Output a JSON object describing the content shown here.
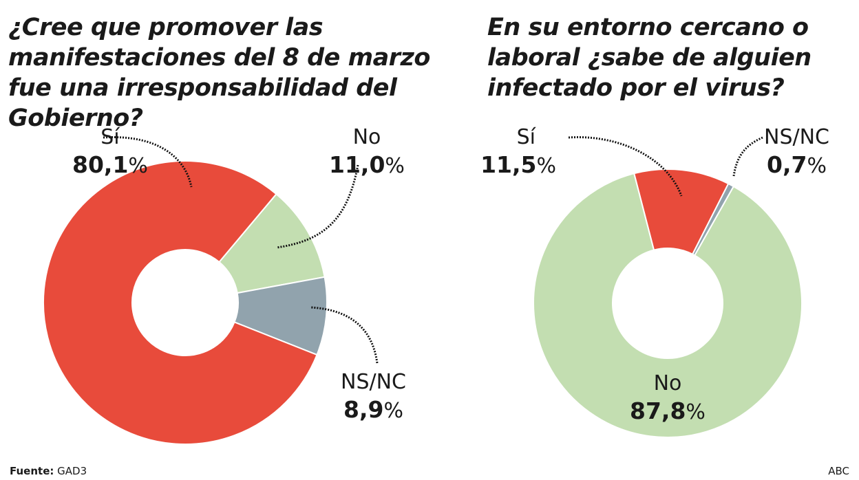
{
  "chart_data": [
    {
      "type": "pie",
      "variant": "donut",
      "title": "¿Cree que promover las manifestaciones del 8 de marzo fue una irresponsabilidad del Gobierno?",
      "categories": [
        "No",
        "NS/NC",
        "Sí"
      ],
      "values": [
        11.0,
        8.9,
        80.1
      ],
      "value_labels": [
        "11,0",
        "8,9",
        "80,1"
      ],
      "unit": "%",
      "colors": [
        "#c3deb1",
        "#91a3ad",
        "#e84b3b"
      ]
    },
    {
      "type": "pie",
      "variant": "donut",
      "title": "En su entorno cercano o laboral ¿sabe de alguien infectado por el virus?",
      "categories": [
        "Sí",
        "NS/NC",
        "No"
      ],
      "values": [
        11.5,
        0.7,
        87.8
      ],
      "value_labels": [
        "11,5",
        "0,7",
        "87,8"
      ],
      "unit": "%",
      "colors": [
        "#e84b3b",
        "#91a3ad",
        "#c3deb1"
      ]
    }
  ],
  "footer": {
    "source_label": "Fuente:",
    "source": "GAD3",
    "credit": "ABC"
  }
}
